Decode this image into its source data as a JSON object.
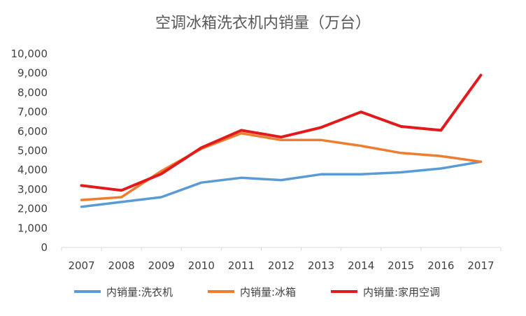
{
  "chart_data": {
    "type": "line",
    "title": "空调冰箱洗衣机内销量（万台）",
    "xlabel": "",
    "ylabel": "",
    "categories": [
      "2007",
      "2008",
      "2009",
      "2010",
      "2011",
      "2012",
      "2013",
      "2014",
      "2015",
      "2016",
      "2017"
    ],
    "ylim": [
      0,
      10000
    ],
    "yticks": [
      0,
      1000,
      2000,
      3000,
      4000,
      5000,
      6000,
      7000,
      8000,
      9000,
      10000
    ],
    "ytick_labels": [
      "0",
      "1,000",
      "2,000",
      "3,000",
      "4,000",
      "5,000",
      "6,000",
      "7,000",
      "8,000",
      "9,000",
      "10,000"
    ],
    "grid": false,
    "legend_position": "bottom",
    "series": [
      {
        "name": "内销量:洗衣机",
        "color": "#5B9BD5",
        "values": [
          2100,
          2350,
          2600,
          3350,
          3600,
          3480,
          3780,
          3780,
          3880,
          4080,
          4430
        ]
      },
      {
        "name": "内销量:冰箱",
        "color": "#ED7D31",
        "values": [
          2450,
          2600,
          3950,
          5100,
          5900,
          5550,
          5550,
          5250,
          4880,
          4720,
          4430
        ]
      },
      {
        "name": "内销量:家用空调",
        "color": "#E31A1C",
        "values": [
          3200,
          2950,
          3800,
          5150,
          6050,
          5700,
          6200,
          7000,
          6250,
          6050,
          8900
        ]
      }
    ]
  }
}
